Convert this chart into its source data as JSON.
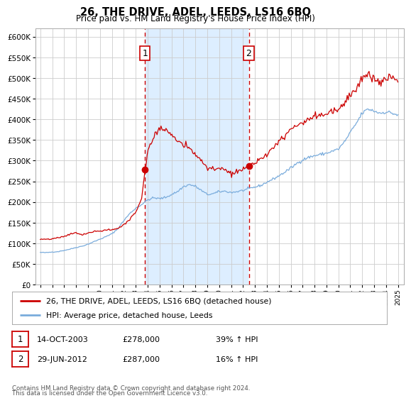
{
  "title": "26, THE DRIVE, ADEL, LEEDS, LS16 6BQ",
  "subtitle": "Price paid vs. HM Land Registry's House Price Index (HPI)",
  "legend_property": "26, THE DRIVE, ADEL, LEEDS, LS16 6BQ (detached house)",
  "legend_hpi": "HPI: Average price, detached house, Leeds",
  "sale1_date": "14-OCT-2003",
  "sale1_price": "£278,000",
  "sale1_hpi_pct": "39% ↑ HPI",
  "sale1_year": 2003.79,
  "sale2_date": "29-JUN-2012",
  "sale2_price": "£287,000",
  "sale2_hpi_pct": "16% ↑ HPI",
  "sale2_year": 2012.49,
  "footnote_line1": "Contains HM Land Registry data © Crown copyright and database right 2024.",
  "footnote_line2": "This data is licensed under the Open Government Licence v3.0.",
  "property_color": "#cc0000",
  "hpi_color": "#7aacdc",
  "shaded_color": "#ddeeff",
  "annotation_box_color": "#cc0000",
  "ylim": [
    0,
    620000
  ],
  "yticks": [
    0,
    50000,
    100000,
    150000,
    200000,
    250000,
    300000,
    350000,
    400000,
    450000,
    500000,
    550000,
    600000
  ],
  "xlim_left": 1994.6,
  "xlim_right": 2025.5,
  "grid_color": "#cccccc",
  "background_color": "#ffffff",
  "hpi_waypoints": [
    [
      1995.0,
      78000
    ],
    [
      1995.5,
      77500
    ],
    [
      1996.0,
      79000
    ],
    [
      1996.5,
      80000
    ],
    [
      1997.0,
      83000
    ],
    [
      1997.5,
      86000
    ],
    [
      1998.0,
      90000
    ],
    [
      1998.5,
      93000
    ],
    [
      1999.0,
      98000
    ],
    [
      1999.5,
      104000
    ],
    [
      2000.0,
      110000
    ],
    [
      2000.5,
      116000
    ],
    [
      2001.0,
      123000
    ],
    [
      2001.5,
      135000
    ],
    [
      2002.0,
      155000
    ],
    [
      2002.5,
      172000
    ],
    [
      2003.0,
      185000
    ],
    [
      2003.5,
      194000
    ],
    [
      2004.0,
      205000
    ],
    [
      2004.5,
      210000
    ],
    [
      2005.0,
      208000
    ],
    [
      2005.5,
      211000
    ],
    [
      2006.0,
      218000
    ],
    [
      2006.5,
      225000
    ],
    [
      2007.0,
      237000
    ],
    [
      2007.5,
      242000
    ],
    [
      2008.0,
      238000
    ],
    [
      2008.5,
      228000
    ],
    [
      2009.0,
      218000
    ],
    [
      2009.5,
      220000
    ],
    [
      2010.0,
      225000
    ],
    [
      2010.5,
      226000
    ],
    [
      2011.0,
      223000
    ],
    [
      2011.5,
      225000
    ],
    [
      2012.0,
      228000
    ],
    [
      2012.5,
      232000
    ],
    [
      2013.0,
      236000
    ],
    [
      2013.5,
      240000
    ],
    [
      2014.0,
      248000
    ],
    [
      2014.5,
      255000
    ],
    [
      2015.0,
      263000
    ],
    [
      2015.5,
      272000
    ],
    [
      2016.0,
      282000
    ],
    [
      2016.5,
      293000
    ],
    [
      2017.0,
      302000
    ],
    [
      2017.5,
      308000
    ],
    [
      2018.0,
      312000
    ],
    [
      2018.5,
      315000
    ],
    [
      2019.0,
      318000
    ],
    [
      2019.5,
      323000
    ],
    [
      2020.0,
      328000
    ],
    [
      2020.5,
      345000
    ],
    [
      2021.0,
      368000
    ],
    [
      2021.5,
      390000
    ],
    [
      2022.0,
      415000
    ],
    [
      2022.5,
      425000
    ],
    [
      2023.0,
      420000
    ],
    [
      2023.5,
      415000
    ],
    [
      2024.0,
      418000
    ],
    [
      2024.5,
      415000
    ],
    [
      2025.0,
      410000
    ]
  ],
  "prop_waypoints_before": [
    [
      1995.0,
      110000
    ],
    [
      1995.5,
      109000
    ],
    [
      1996.0,
      111000
    ],
    [
      1996.5,
      113000
    ],
    [
      1997.0,
      117000
    ],
    [
      1997.5,
      122000
    ],
    [
      1998.0,
      126000
    ],
    [
      1998.5,
      120000
    ],
    [
      1999.0,
      125000
    ],
    [
      1999.5,
      128000
    ],
    [
      2000.0,
      130000
    ],
    [
      2000.5,
      132000
    ],
    [
      2001.0,
      133000
    ],
    [
      2001.5,
      136000
    ],
    [
      2002.0,
      145000
    ],
    [
      2002.5,
      158000
    ],
    [
      2003.0,
      175000
    ],
    [
      2003.5,
      210000
    ],
    [
      2003.79,
      278000
    ]
  ],
  "prop_waypoints_between": [
    [
      2003.79,
      278000
    ],
    [
      2004.0,
      320000
    ],
    [
      2004.5,
      355000
    ],
    [
      2005.0,
      380000
    ],
    [
      2005.5,
      375000
    ],
    [
      2006.0,
      365000
    ],
    [
      2006.5,
      345000
    ],
    [
      2007.0,
      340000
    ],
    [
      2007.5,
      330000
    ],
    [
      2008.0,
      315000
    ],
    [
      2008.5,
      300000
    ],
    [
      2009.0,
      285000
    ],
    [
      2009.5,
      278000
    ],
    [
      2010.0,
      280000
    ],
    [
      2010.5,
      278000
    ],
    [
      2011.0,
      268000
    ],
    [
      2011.5,
      272000
    ],
    [
      2012.0,
      278000
    ],
    [
      2012.49,
      287000
    ]
  ],
  "prop_waypoints_after": [
    [
      2012.49,
      287000
    ],
    [
      2013.0,
      295000
    ],
    [
      2013.5,
      305000
    ],
    [
      2014.0,
      315000
    ],
    [
      2014.5,
      330000
    ],
    [
      2015.0,
      345000
    ],
    [
      2015.5,
      360000
    ],
    [
      2016.0,
      375000
    ],
    [
      2016.5,
      385000
    ],
    [
      2017.0,
      392000
    ],
    [
      2017.5,
      400000
    ],
    [
      2018.0,
      405000
    ],
    [
      2018.5,
      408000
    ],
    [
      2019.0,
      413000
    ],
    [
      2019.5,
      418000
    ],
    [
      2020.0,
      422000
    ],
    [
      2020.5,
      440000
    ],
    [
      2021.0,
      460000
    ],
    [
      2021.5,
      478000
    ],
    [
      2022.0,
      500000
    ],
    [
      2022.5,
      510000
    ],
    [
      2023.0,
      495000
    ],
    [
      2023.5,
      490000
    ],
    [
      2024.0,
      498000
    ],
    [
      2024.5,
      505000
    ],
    [
      2025.0,
      490000
    ]
  ]
}
